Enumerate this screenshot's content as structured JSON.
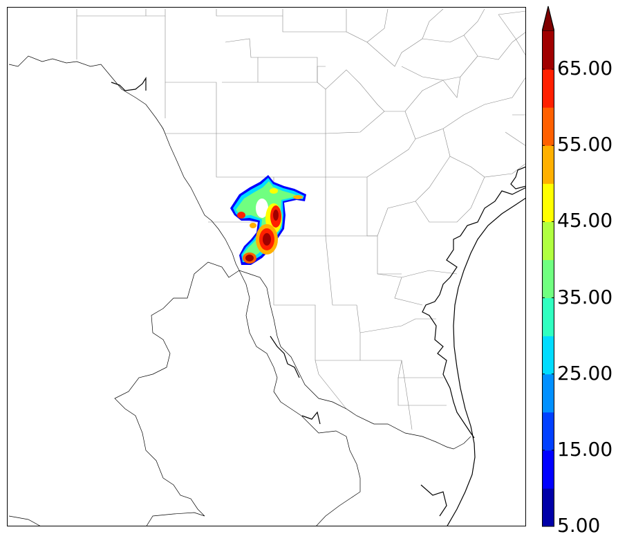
{
  "colorbar": {
    "tick_labels": [
      "5.00",
      "15.00",
      "25.00",
      "35.00",
      "45.00",
      "55.00",
      "65.00"
    ],
    "tick_values": [
      5,
      15,
      25,
      35,
      45,
      55,
      65
    ],
    "levels": [
      5,
      10,
      15,
      20,
      25,
      30,
      35,
      40,
      45,
      50,
      55,
      60,
      65,
      70
    ],
    "colors": [
      "#0000a8",
      "#0000ff",
      "#0040ff",
      "#0090ff",
      "#00dcff",
      "#30ffc0",
      "#70ff80",
      "#b0ff40",
      "#ffff00",
      "#ffb000",
      "#ff6000",
      "#ff2000",
      "#a00000"
    ],
    "extend": "max"
  },
  "map": {
    "region": "South Texas / Northeast Mexico",
    "feature_icon": "precipitation-field"
  }
}
